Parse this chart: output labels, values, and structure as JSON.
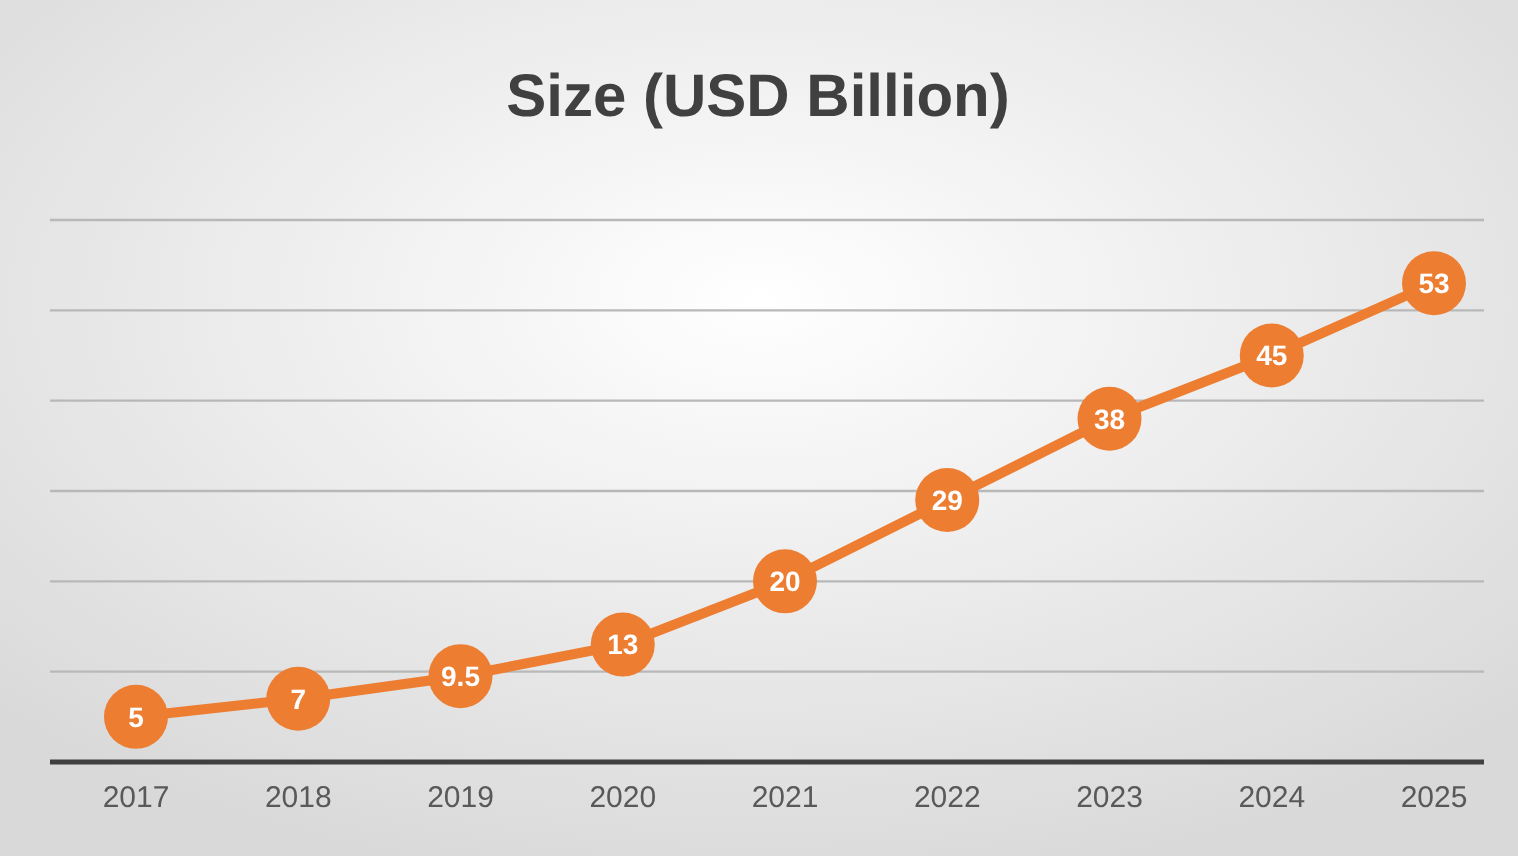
{
  "chart_data": {
    "type": "line",
    "title": "Size (USD Billion)",
    "categories": [
      "2017",
      "2018",
      "2019",
      "2020",
      "2021",
      "2022",
      "2023",
      "2024",
      "2025"
    ],
    "series": [
      {
        "color": "#ed7d31",
        "values": [
          5,
          7,
          9.5,
          13,
          20,
          29,
          38,
          45,
          53
        ]
      }
    ],
    "ylim": [
      0,
      60
    ],
    "yticks": [
      {
        "value": 0,
        "label": null
      },
      {
        "value": 10,
        "label": null
      },
      {
        "value": 20,
        "label": null
      },
      {
        "value": 30,
        "label": null
      },
      {
        "value": 40,
        "label": null
      },
      {
        "value": 50,
        "label": null
      },
      {
        "value": 60,
        "label": null
      }
    ],
    "grid": "y",
    "tick_labels": "x",
    "marker": "circle",
    "line_style": "solid",
    "data_labels": true
  }
}
